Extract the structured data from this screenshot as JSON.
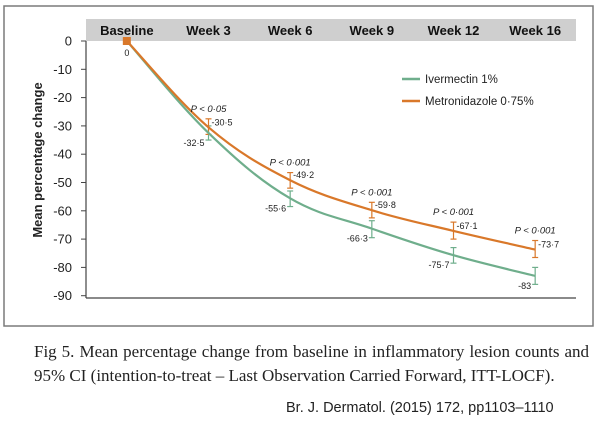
{
  "chart_data": {
    "type": "line",
    "categories": [
      "Baseline",
      "Week 3",
      "Week 6",
      "Week 9",
      "Week 12",
      "Week 16"
    ],
    "ylabel": "Mean percentage change",
    "ylim": [
      -90,
      0
    ],
    "yticks": [
      0,
      -10,
      -20,
      -30,
      -40,
      -50,
      -60,
      -70,
      -80,
      -90
    ],
    "series": [
      {
        "name": "Ivermectin 1%",
        "color": "#6fae8c",
        "values": [
          0,
          -32.5,
          -55.6,
          -66.3,
          -75.7,
          -83
        ],
        "labels": [
          "0",
          "-32·5",
          "-55·6",
          "-66·3",
          "-75·7",
          "-83"
        ],
        "ci": [
          [
            0,
            0
          ],
          [
            -35,
            -30
          ],
          [
            -58.5,
            -53
          ],
          [
            -69.5,
            -63.5
          ],
          [
            -78.5,
            -73
          ],
          [
            -86,
            -80
          ]
        ]
      },
      {
        "name": "Metronidazole 0·75%",
        "color": "#d9782a",
        "values": [
          0,
          -30.5,
          -49.2,
          -59.8,
          -67.1,
          -73.7
        ],
        "labels": [
          "",
          "-30·5",
          "-49·2",
          "-59·8",
          "-67·1",
          "-73·7"
        ],
        "ci": [
          [
            0,
            0
          ],
          [
            -33,
            -27.5
          ],
          [
            -52,
            -46.5
          ],
          [
            -62.5,
            -57
          ],
          [
            -70,
            -64
          ],
          [
            -76.5,
            -70.5
          ]
        ]
      }
    ],
    "pvalues": [
      "",
      "P < 0·05",
      "P < 0·001",
      "P < 0·001",
      "P < 0·001",
      "P < 0·001"
    ],
    "legend_position": "top-right",
    "grid": false
  },
  "caption": {
    "label": "Fig 5.",
    "text": "Mean percentage change from baseline in inflammatory lesion counts and 95% CI (intention-to-treat – Last Observation Carried Forward, ITT-LOCF)."
  },
  "citation": "Br. J. Dermatol. (2015) 172, pp1103–1110"
}
